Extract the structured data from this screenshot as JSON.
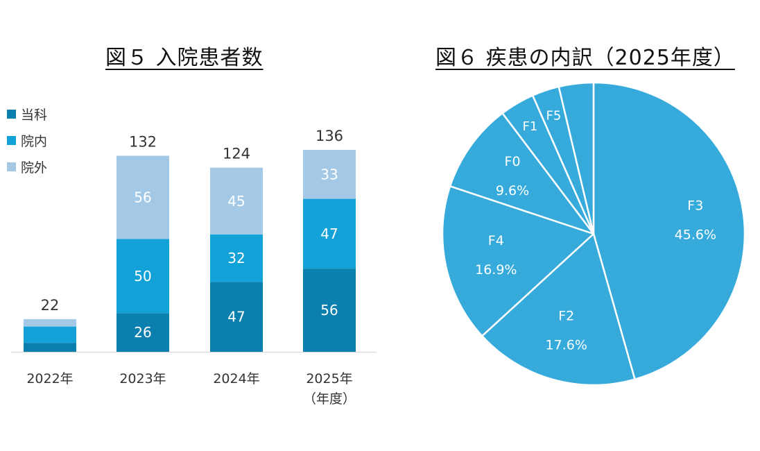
{
  "fig5": {
    "title": "図５ 入院患者数",
    "chart_data": {
      "type": "bar",
      "stacked": true,
      "categories": [
        "2022年",
        "2023年",
        "2024年",
        "2025年"
      ],
      "category_sublabels": [
        "",
        "",
        "",
        "（年度）"
      ],
      "series": [
        {
          "name": "当科",
          "values": [
            6,
            26,
            47,
            56
          ],
          "color": "#0b7fad",
          "show_labels": [
            false,
            true,
            true,
            true
          ]
        },
        {
          "name": "院内",
          "values": [
            11,
            50,
            32,
            47
          ],
          "color": "#12a2d8",
          "show_labels": [
            false,
            true,
            true,
            true
          ]
        },
        {
          "name": "院外",
          "values": [
            5,
            56,
            45,
            33
          ],
          "color": "#a3c9e6",
          "show_labels": [
            false,
            true,
            true,
            true
          ]
        }
      ],
      "totals": [
        "22",
        "132",
        "124",
        "136"
      ],
      "ylim": [
        0,
        140
      ],
      "legend_position": "top-left",
      "grid": false
    }
  },
  "fig6": {
    "title": "図６ 疾患の内訳（2025年度）",
    "chart_data": {
      "type": "pie",
      "color": "#36abdb",
      "slices": [
        {
          "label": "F3",
          "value": 45.6,
          "pct_label": "45.6%"
        },
        {
          "label": "F2",
          "value": 17.6,
          "pct_label": "17.6%"
        },
        {
          "label": "F4",
          "value": 16.9,
          "pct_label": "16.9%"
        },
        {
          "label": "F0",
          "value": 9.6,
          "pct_label": "9.6%"
        },
        {
          "label": "F1",
          "value": 3.7,
          "pct_label": ""
        },
        {
          "label": "F5",
          "value": 2.9,
          "pct_label": ""
        },
        {
          "label": "",
          "value": 3.7,
          "pct_label": ""
        }
      ]
    }
  }
}
